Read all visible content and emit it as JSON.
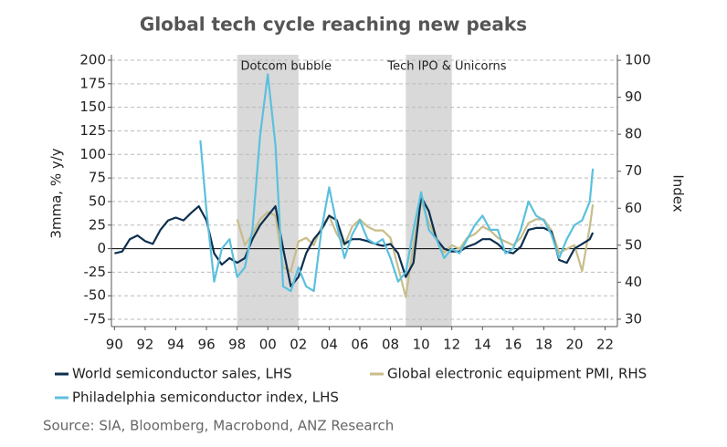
{
  "chart_data": {
    "type": "line",
    "title": "Global tech cycle reaching new peaks",
    "y_label": "3mma, % y/y",
    "y2_label": "Index",
    "source": "Source: SIA, Bloomberg, Macrobond, ANZ Research",
    "xlim": [
      1989.8,
      2022.8
    ],
    "xticks": [
      {
        "value": 1990,
        "label": "90"
      },
      {
        "value": 1992,
        "label": "92"
      },
      {
        "value": 1994,
        "label": "94"
      },
      {
        "value": 1996,
        "label": "96"
      },
      {
        "value": 1998,
        "label": "98"
      },
      {
        "value": 2000,
        "label": "00"
      },
      {
        "value": 2002,
        "label": "02"
      },
      {
        "value": 2004,
        "label": "04"
      },
      {
        "value": 2006,
        "label": "06"
      },
      {
        "value": 2008,
        "label": "08"
      },
      {
        "value": 2010,
        "label": "10"
      },
      {
        "value": 2012,
        "label": "12"
      },
      {
        "value": 2014,
        "label": "14"
      },
      {
        "value": 2016,
        "label": "16"
      },
      {
        "value": 2018,
        "label": "18"
      },
      {
        "value": 2020,
        "label": "20"
      },
      {
        "value": 2022,
        "label": "22"
      }
    ],
    "ylim": [
      -82.7,
      205.8
    ],
    "yticks": [
      -75,
      -50,
      -25,
      0,
      25,
      50,
      75,
      100,
      125,
      150,
      175,
      200
    ],
    "y2lim": [
      28.0,
      101.5
    ],
    "y2ticks": [
      30,
      40,
      50,
      60,
      70,
      80,
      90,
      100
    ],
    "grid": true,
    "annotations": [
      {
        "label": "Dotcom bubble",
        "start": 1998,
        "end": 2002,
        "color": "#d9d9d9"
      },
      {
        "label": "Tech IPO & Unicorns",
        "start": 2009,
        "end": 2012,
        "color": "#d9d9d9"
      }
    ],
    "series": [
      {
        "name": "World semiconductor sales, LHS",
        "color": "#0d2f4f",
        "x": [
          1990,
          1990.5,
          1991,
          1991.5,
          1992,
          1992.5,
          1993,
          1993.5,
          1994,
          1994.5,
          1995,
          1995.5,
          1996,
          1996.5,
          1997,
          1997.5,
          1998,
          1998.5,
          1999,
          1999.5,
          2000,
          2000.5,
          2001,
          2001.5,
          2002,
          2002.5,
          2003,
          2003.5,
          2004,
          2004.5,
          2005,
          2005.5,
          2006,
          2006.5,
          2007,
          2007.5,
          2008,
          2008.5,
          2009,
          2009.5,
          2010,
          2010.5,
          2011,
          2011.5,
          2012,
          2012.5,
          2013,
          2013.5,
          2014,
          2014.5,
          2015,
          2015.5,
          2016,
          2016.5,
          2017,
          2017.5,
          2018,
          2018.5,
          2019,
          2019.5,
          2020,
          2020.5,
          2021,
          2021.2
        ],
        "values": [
          -5,
          -3,
          10,
          14,
          8,
          5,
          20,
          30,
          33,
          30,
          38,
          45,
          30,
          -5,
          -17,
          -10,
          -15,
          -10,
          10,
          25,
          35,
          45,
          0,
          -40,
          -30,
          -5,
          10,
          20,
          35,
          30,
          5,
          10,
          10,
          8,
          5,
          3,
          5,
          -5,
          -30,
          -15,
          55,
          40,
          10,
          0,
          -3,
          -3,
          2,
          5,
          10,
          10,
          5,
          -3,
          -5,
          2,
          20,
          22,
          22,
          18,
          -12,
          -15,
          0,
          5,
          10,
          17
        ]
      },
      {
        "name": "Philadelphia semiconductor index, LHS",
        "color": "#5bc0de",
        "x": [
          1995.6,
          1996,
          1996.5,
          1997,
          1997.5,
          1998,
          1998.5,
          1999,
          1999.5,
          2000,
          2000.5,
          2001,
          2001.5,
          2002,
          2002.5,
          2003,
          2003.5,
          2004,
          2004.5,
          2005,
          2005.5,
          2006,
          2006.5,
          2007,
          2007.5,
          2008,
          2008.5,
          2009,
          2009.5,
          2010,
          2010.5,
          2011,
          2011.5,
          2012,
          2012.5,
          2013,
          2013.5,
          2014,
          2014.5,
          2015,
          2015.5,
          2016,
          2016.5,
          2017,
          2017.5,
          2018,
          2018.5,
          2019,
          2019.5,
          2020,
          2020.5,
          2021,
          2021.2
        ],
        "values": [
          115,
          40,
          -35,
          0,
          10,
          -30,
          -20,
          20,
          120,
          185,
          110,
          -40,
          -45,
          -20,
          -40,
          -45,
          20,
          65,
          25,
          -10,
          15,
          30,
          10,
          5,
          10,
          -10,
          -35,
          -25,
          20,
          60,
          20,
          10,
          -10,
          0,
          -5,
          10,
          25,
          35,
          20,
          20,
          -5,
          0,
          20,
          50,
          35,
          30,
          15,
          -10,
          10,
          25,
          30,
          50,
          85
        ]
      },
      {
        "name": "Global electronic equipment PMI, RHS",
        "color": "#c8bd8a",
        "axis": "y2",
        "x": [
          1998,
          1998.5,
          1999,
          1999.5,
          2000,
          2000.5,
          2001,
          2001.5,
          2002,
          2002.5,
          2003,
          2003.5,
          2004,
          2004.5,
          2005,
          2005.5,
          2006,
          2006.5,
          2007,
          2007.5,
          2008,
          2008.5,
          2009,
          2009.5,
          2010,
          2010.5,
          2011,
          2011.5,
          2012,
          2012.5,
          2013,
          2013.5,
          2014,
          2014.5,
          2015,
          2015.5,
          2016,
          2016.5,
          2017,
          2017.5,
          2018,
          2018.5,
          2019,
          2019.5,
          2020,
          2020.5,
          2021,
          2021.2
        ],
        "values": [
          57,
          50,
          53,
          57,
          59,
          58,
          44,
          43,
          51,
          52,
          50,
          55,
          58,
          53,
          50,
          55,
          57,
          55,
          54,
          54,
          52,
          44,
          36,
          50,
          62,
          56,
          52,
          48,
          50,
          49,
          52,
          53,
          55,
          54,
          52,
          51,
          50,
          52,
          56,
          57,
          57,
          54,
          48,
          49,
          50,
          43,
          55,
          61
        ]
      }
    ]
  }
}
